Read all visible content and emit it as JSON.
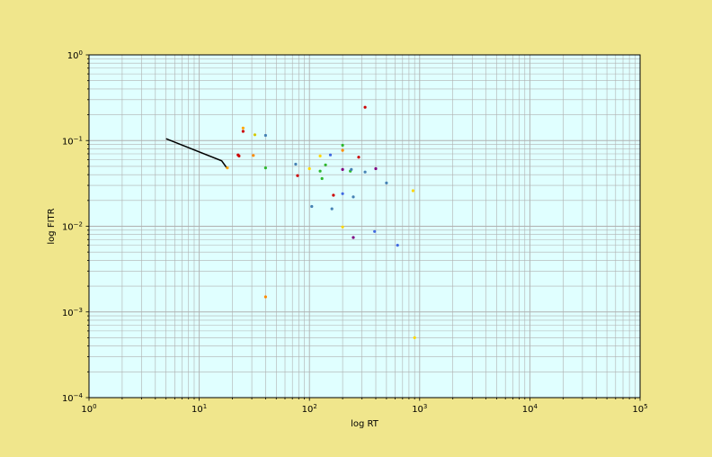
{
  "chart_data": {
    "type": "scatter",
    "title": "",
    "xlabel": "log RT",
    "ylabel": "log FITR",
    "xscale": "log",
    "yscale": "log",
    "xlim": [
      1,
      100000
    ],
    "ylim": [
      0.0001,
      1
    ],
    "grid": true,
    "grid_minor": true,
    "plot_background": "#e0ffff",
    "figure_background": "#f0e68c",
    "x_ticks": [
      {
        "base": "10",
        "exp": "0",
        "value": 1
      },
      {
        "base": "10",
        "exp": "1",
        "value": 10
      },
      {
        "base": "10",
        "exp": "2",
        "value": 100
      },
      {
        "base": "10",
        "exp": "3",
        "value": 1000
      },
      {
        "base": "10",
        "exp": "4",
        "value": 10000
      },
      {
        "base": "10",
        "exp": "5",
        "value": 100000
      }
    ],
    "y_ticks": [
      {
        "base": "10",
        "exp": "−4",
        "value": 0.0001
      },
      {
        "base": "10",
        "exp": "−3",
        "value": 0.001
      },
      {
        "base": "10",
        "exp": "−2",
        "value": 0.01
      },
      {
        "base": "10",
        "exp": "−1",
        "value": 0.1
      },
      {
        "base": "10",
        "exp": "0",
        "value": 1
      }
    ],
    "line": {
      "color": "#000000",
      "points": [
        [
          5,
          0.105
        ],
        [
          16,
          0.058
        ],
        [
          18,
          0.047
        ]
      ]
    },
    "points": [
      {
        "x": 25,
        "y": 0.14,
        "color": "#ffa500"
      },
      {
        "x": 25,
        "y": 0.128,
        "color": "#cc0000"
      },
      {
        "x": 32,
        "y": 0.117,
        "color": "#d4c800"
      },
      {
        "x": 40,
        "y": 0.115,
        "color": "#4682b4"
      },
      {
        "x": 22.5,
        "y": 0.068,
        "color": "#cc0000"
      },
      {
        "x": 23,
        "y": 0.066,
        "color": "#cc0000"
      },
      {
        "x": 31,
        "y": 0.067,
        "color": "#ff8c00"
      },
      {
        "x": 18,
        "y": 0.048,
        "color": "#ffa500"
      },
      {
        "x": 40,
        "y": 0.048,
        "color": "#2eb82e"
      },
      {
        "x": 75,
        "y": 0.053,
        "color": "#4682b4"
      },
      {
        "x": 78,
        "y": 0.039,
        "color": "#cc0000"
      },
      {
        "x": 100,
        "y": 0.047,
        "color": "#ffd700"
      },
      {
        "x": 125,
        "y": 0.066,
        "color": "#ffd700"
      },
      {
        "x": 125,
        "y": 0.044,
        "color": "#2eb82e"
      },
      {
        "x": 130,
        "y": 0.036,
        "color": "#2eb82e"
      },
      {
        "x": 140,
        "y": 0.052,
        "color": "#2eb82e"
      },
      {
        "x": 155,
        "y": 0.068,
        "color": "#4169e1"
      },
      {
        "x": 200,
        "y": 0.088,
        "color": "#2eb82e"
      },
      {
        "x": 200,
        "y": 0.077,
        "color": "#ff8c00"
      },
      {
        "x": 200,
        "y": 0.046,
        "color": "#800080"
      },
      {
        "x": 235,
        "y": 0.044,
        "color": "#2eb82e"
      },
      {
        "x": 240,
        "y": 0.046,
        "color": "#4682b4"
      },
      {
        "x": 280,
        "y": 0.064,
        "color": "#cc0000"
      },
      {
        "x": 320,
        "y": 0.245,
        "color": "#cc0000"
      },
      {
        "x": 320,
        "y": 0.043,
        "color": "#4682b4"
      },
      {
        "x": 400,
        "y": 0.047,
        "color": "#800080"
      },
      {
        "x": 500,
        "y": 0.032,
        "color": "#4682b4"
      },
      {
        "x": 870,
        "y": 0.026,
        "color": "#ffd700"
      },
      {
        "x": 105,
        "y": 0.017,
        "color": "#4682b4"
      },
      {
        "x": 165,
        "y": 0.023,
        "color": "#cc0000"
      },
      {
        "x": 200,
        "y": 0.024,
        "color": "#4169e1"
      },
      {
        "x": 250,
        "y": 0.022,
        "color": "#4682b4"
      },
      {
        "x": 160,
        "y": 0.016,
        "color": "#4682b4"
      },
      {
        "x": 200,
        "y": 0.0098,
        "color": "#ffd700"
      },
      {
        "x": 390,
        "y": 0.0087,
        "color": "#4169e1"
      },
      {
        "x": 250,
        "y": 0.0074,
        "color": "#800080"
      },
      {
        "x": 630,
        "y": 0.006,
        "color": "#4169e1"
      },
      {
        "x": 40,
        "y": 0.0015,
        "color": "#ff8c00"
      },
      {
        "x": 900,
        "y": 0.0005,
        "color": "#ffd700"
      }
    ]
  }
}
